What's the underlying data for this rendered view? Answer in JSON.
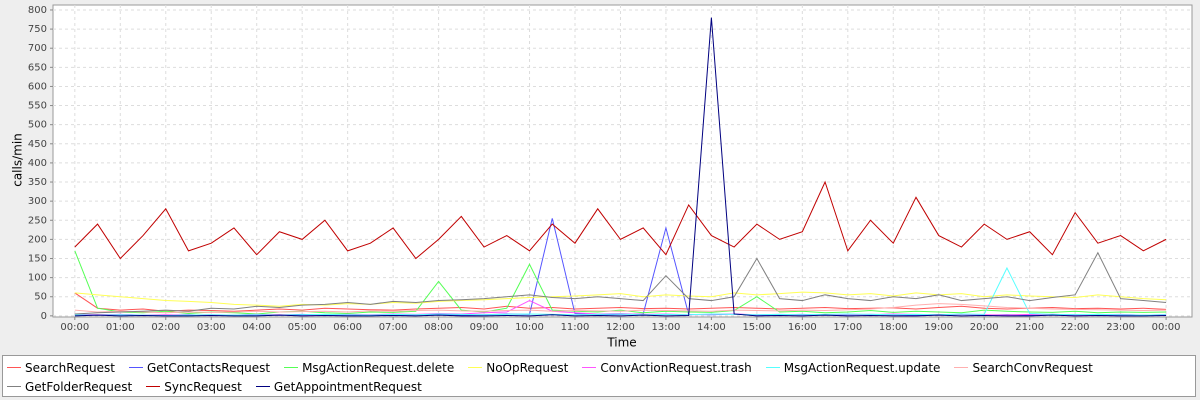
{
  "chart_data": {
    "type": "line",
    "xlabel": "Time",
    "ylabel": "calls/min",
    "grid": true,
    "xlim": [
      -0.48,
      24.57
    ],
    "ylim": [
      -3,
      813
    ],
    "xticks": [
      {
        "value": 0,
        "label": "00:00"
      },
      {
        "value": 1,
        "label": "01:00"
      },
      {
        "value": 2,
        "label": "02:00"
      },
      {
        "value": 3,
        "label": "03:00"
      },
      {
        "value": 4,
        "label": "04:00"
      },
      {
        "value": 5,
        "label": "05:00"
      },
      {
        "value": 6,
        "label": "06:00"
      },
      {
        "value": 7,
        "label": "07:00"
      },
      {
        "value": 8,
        "label": "08:00"
      },
      {
        "value": 9,
        "label": "09:00"
      },
      {
        "value": 10,
        "label": "10:00"
      },
      {
        "value": 11,
        "label": "11:00"
      },
      {
        "value": 12,
        "label": "12:00"
      },
      {
        "value": 13,
        "label": "13:00"
      },
      {
        "value": 14,
        "label": "14:00"
      },
      {
        "value": 15,
        "label": "15:00"
      },
      {
        "value": 16,
        "label": "16:00"
      },
      {
        "value": 17,
        "label": "17:00"
      },
      {
        "value": 18,
        "label": "18:00"
      },
      {
        "value": 19,
        "label": "19:00"
      },
      {
        "value": 20,
        "label": "20:00"
      },
      {
        "value": 21,
        "label": "21:00"
      },
      {
        "value": 22,
        "label": "22:00"
      },
      {
        "value": 23,
        "label": "23:00"
      },
      {
        "value": 24,
        "label": "00:00"
      }
    ],
    "yticks": [
      0,
      50,
      100,
      150,
      200,
      250,
      300,
      350,
      400,
      450,
      500,
      550,
      600,
      650,
      700,
      750,
      800
    ],
    "x": [
      0,
      0.5,
      1,
      1.5,
      2,
      2.5,
      3,
      3.5,
      4,
      4.5,
      5,
      5.5,
      6,
      6.5,
      7,
      7.5,
      8,
      8.5,
      9,
      9.5,
      10,
      10.5,
      11,
      11.5,
      12,
      12.5,
      13,
      13.5,
      14,
      14.5,
      15,
      15.5,
      16,
      16.5,
      17,
      17.5,
      18,
      18.5,
      19,
      19.5,
      20,
      20.5,
      21,
      21.5,
      22,
      22.5,
      23,
      23.5,
      24
    ],
    "series": [
      {
        "name": "SearchRequest",
        "color": "#ff5555",
        "values": [
          60,
          20,
          15,
          18,
          12,
          15,
          14,
          12,
          15,
          18,
          15,
          20,
          18,
          16,
          15,
          18,
          20,
          22,
          18,
          25,
          20,
          22,
          18,
          20,
          22,
          19,
          20,
          18,
          20,
          22,
          20,
          18,
          20,
          22,
          19,
          20,
          21,
          18,
          22,
          25,
          20,
          18,
          20,
          22,
          19,
          20,
          18,
          20,
          17
        ]
      },
      {
        "name": "GetContactsRequest",
        "color": "#5555ff",
        "values": [
          3,
          2,
          4,
          1,
          2,
          3,
          1,
          2,
          3,
          2,
          4,
          2,
          3,
          1,
          2,
          3,
          4,
          2,
          3,
          5,
          4,
          255,
          6,
          3,
          4,
          5,
          230,
          4,
          3,
          5,
          2,
          3,
          4,
          2,
          3,
          4,
          3,
          2,
          3,
          4,
          2,
          3,
          2,
          4,
          3,
          2,
          3,
          2,
          3
        ]
      },
      {
        "name": "MsgActionRequest.delete",
        "color": "#55ff55",
        "values": [
          170,
          20,
          10,
          8,
          12,
          6,
          10,
          8,
          5,
          10,
          12,
          8,
          6,
          10,
          9,
          12,
          90,
          15,
          10,
          20,
          135,
          15,
          12,
          10,
          15,
          8,
          12,
          10,
          9,
          14,
          50,
          10,
          12,
          8,
          10,
          14,
          9,
          12,
          10,
          8,
          15,
          12,
          10,
          9,
          12,
          8,
          10,
          9,
          10
        ]
      },
      {
        "name": "NoOpRequest",
        "color": "#ffff55",
        "values": [
          60,
          55,
          50,
          45,
          40,
          38,
          35,
          30,
          28,
          25,
          30,
          28,
          32,
          30,
          35,
          33,
          38,
          40,
          42,
          45,
          48,
          50,
          52,
          55,
          58,
          50,
          55,
          52,
          50,
          60,
          55,
          58,
          62,
          60,
          55,
          58,
          52,
          60,
          55,
          58,
          50,
          55,
          52,
          50,
          48,
          55,
          50,
          45,
          42
        ]
      },
      {
        "name": "ConvActionRequest.trash",
        "color": "#ff55ff",
        "values": [
          5,
          3,
          4,
          2,
          3,
          2,
          3,
          2,
          4,
          3,
          2,
          3,
          4,
          3,
          5,
          4,
          6,
          5,
          8,
          10,
          40,
          12,
          8,
          5,
          6,
          4,
          5,
          3,
          4,
          5,
          3,
          4,
          3,
          2,
          4,
          3,
          5,
          4,
          3,
          4,
          3,
          2,
          4,
          3,
          2,
          3,
          4,
          2,
          3
        ]
      },
      {
        "name": "MsgActionRequest.update",
        "color": "#55ffff",
        "values": [
          3,
          2,
          3,
          2,
          1,
          2,
          3,
          2,
          3,
          2,
          3,
          4,
          3,
          2,
          4,
          3,
          5,
          4,
          3,
          4,
          5,
          4,
          3,
          4,
          5,
          3,
          4,
          3,
          5,
          4,
          3,
          4,
          3,
          4,
          5,
          4,
          3,
          4,
          3,
          5,
          4,
          125,
          6,
          4,
          3,
          4,
          3,
          2,
          3
        ]
      },
      {
        "name": "SearchConvRequest",
        "color": "#ffafaf",
        "values": [
          15,
          10,
          12,
          10,
          8,
          10,
          9,
          10,
          12,
          10,
          11,
          12,
          10,
          13,
          12,
          14,
          15,
          13,
          12,
          14,
          15,
          12,
          14,
          13,
          12,
          15,
          14,
          13,
          12,
          15,
          14,
          13,
          15,
          14,
          16,
          18,
          22,
          28,
          32,
          30,
          26,
          22,
          20,
          18,
          17,
          16,
          15,
          14,
          15
        ]
      },
      {
        "name": "GetFolderRequest",
        "color": "#808080",
        "values": [
          5,
          8,
          10,
          12,
          15,
          12,
          20,
          18,
          25,
          22,
          28,
          30,
          35,
          30,
          38,
          35,
          40,
          42,
          45,
          50,
          55,
          48,
          45,
          50,
          45,
          40,
          105,
          45,
          40,
          50,
          150,
          45,
          40,
          55,
          45,
          40,
          50,
          45,
          55,
          40,
          45,
          50,
          40,
          48,
          55,
          165,
          45,
          40,
          35
        ]
      },
      {
        "name": "SyncRequest",
        "color": "#c00000",
        "values": [
          180,
          240,
          150,
          210,
          280,
          170,
          190,
          230,
          160,
          220,
          200,
          250,
          170,
          190,
          230,
          150,
          200,
          260,
          180,
          210,
          170,
          240,
          190,
          280,
          200,
          230,
          160,
          290,
          210,
          180,
          240,
          200,
          220,
          350,
          170,
          250,
          190,
          310,
          210,
          180,
          240,
          200,
          220,
          160,
          270,
          190,
          210,
          170,
          200
        ]
      },
      {
        "name": "GetAppointmentRequest",
        "color": "#000080",
        "values": [
          0,
          2,
          0,
          1,
          0,
          0,
          1,
          0,
          0,
          2,
          0,
          1,
          0,
          0,
          1,
          0,
          2,
          0,
          0,
          1,
          0,
          3,
          0,
          1,
          0,
          2,
          0,
          1,
          780,
          5,
          0,
          1,
          0,
          2,
          0,
          1,
          0,
          0,
          2,
          0,
          1,
          0,
          0,
          2,
          0,
          1,
          0,
          0,
          1
        ]
      }
    ]
  }
}
